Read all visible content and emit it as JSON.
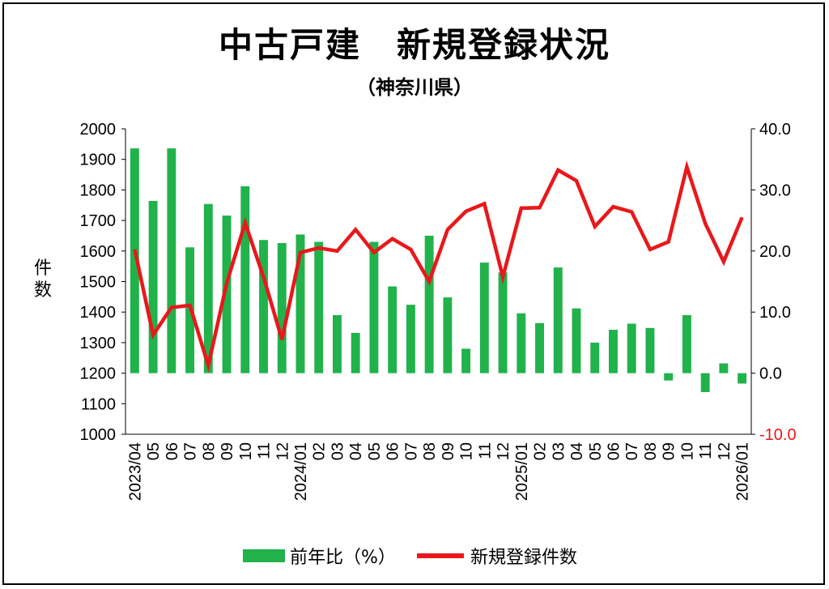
{
  "title": "中古戸建　新規登録状況",
  "subtitle": "（神奈川県）",
  "y_left_label": "件数",
  "legend": {
    "bar_label": "前年比（%）",
    "line_label": "新規登録件数"
  },
  "colors": {
    "bar": "#21b24b",
    "line": "#e8181b",
    "negative_tick": "#e8181b"
  },
  "chart_data": {
    "type": "bar+line",
    "categories": [
      "2023/04",
      "05",
      "06",
      "07",
      "08",
      "09",
      "10",
      "11",
      "12",
      "2024/01",
      "02",
      "03",
      "04",
      "05",
      "06",
      "07",
      "08",
      "09",
      "10",
      "11",
      "12",
      "2025/01",
      "02",
      "03",
      "04",
      "05",
      "06",
      "07",
      "08",
      "09",
      "10",
      "11",
      "12",
      "2026/01"
    ],
    "left_axis": {
      "label": "件数",
      "ylim": [
        1000,
        2000
      ],
      "ticks": [
        "2000",
        "1900",
        "1800",
        "1700",
        "1600",
        "1500",
        "1400",
        "1300",
        "1200",
        "1100",
        "1000"
      ]
    },
    "right_axis": {
      "ylim": [
        -10,
        40
      ],
      "ticks": [
        "40.0",
        "30.0",
        "20.0",
        "10.0",
        "0.0",
        "-10.0"
      ]
    },
    "series": [
      {
        "name": "前年比（%）",
        "type": "bar",
        "axis": "right",
        "values": [
          36.8,
          28.2,
          36.8,
          20.6,
          27.7,
          25.8,
          30.6,
          21.8,
          21.3,
          22.7,
          21.5,
          9.5,
          6.6,
          21.5,
          14.2,
          11.2,
          22.5,
          12.4,
          4.0,
          18.1,
          16.5,
          9.8,
          8.2,
          17.3,
          10.6,
          5.0,
          7.1,
          8.1,
          7.4,
          -1.2,
          9.5,
          -3.1,
          1.6,
          -1.7
        ]
      },
      {
        "name": "新規登録件数",
        "type": "line",
        "axis": "left",
        "values": [
          1605,
          1325,
          1415,
          1422,
          1225,
          1495,
          1692,
          1515,
          1310,
          1595,
          1610,
          1600,
          1670,
          1595,
          1640,
          1605,
          1500,
          1670,
          1730,
          1755,
          1515,
          1740,
          1742,
          1865,
          1830,
          1680,
          1745,
          1728,
          1605,
          1630,
          1875,
          1690,
          1565,
          1710
        ]
      }
    ],
    "x_labels_shown": [
      "2023/04",
      "05",
      "06",
      "07",
      "08",
      "09",
      "10",
      "11",
      "12",
      "2024/01",
      "02",
      "03",
      "04",
      "05",
      "06",
      "07",
      "08",
      "09",
      "10",
      "11",
      "12",
      "2025/01",
      "02",
      "03",
      "04",
      "05",
      "06",
      "07",
      "08",
      "09",
      "10",
      "11",
      "12",
      "2026/01"
    ],
    "grid": false,
    "legend_position": "bottom"
  }
}
